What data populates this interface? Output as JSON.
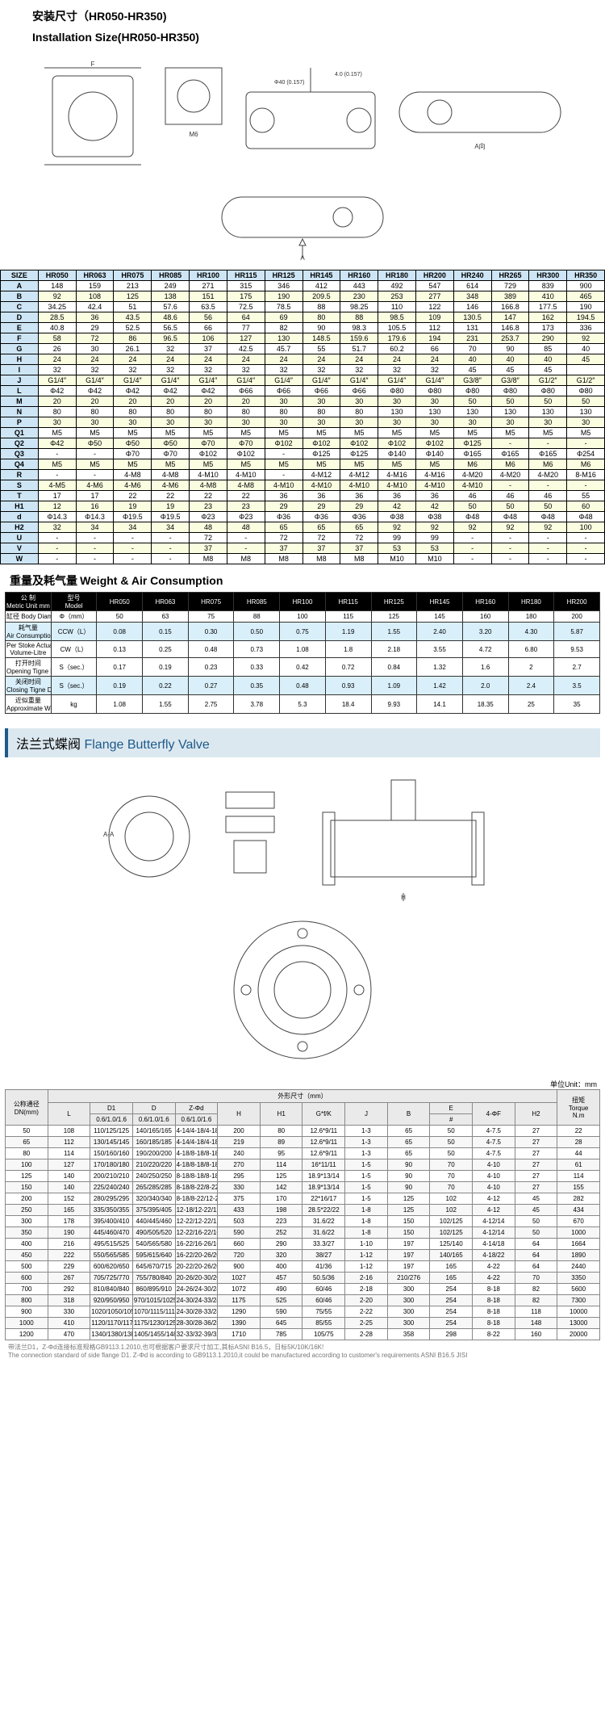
{
  "installTitle": {
    "zh": "安装尺寸（HR050-HR350)",
    "en": "Installation Size(HR050-HR350)"
  },
  "diagramLabels": {
    "m6": "M6",
    "p40": "4.0 (0.157)",
    "phi40": "Φ40 (0.157)",
    "aDir": "A向",
    "arrowA": "A"
  },
  "sizeTable": {
    "headers": [
      "SIZE",
      "HR050",
      "HR063",
      "HR075",
      "HR085",
      "HR100",
      "HR115",
      "HR125",
      "HR145",
      "HR160",
      "HR180",
      "HR200",
      "HR240",
      "HR265",
      "HR300",
      "HR350"
    ],
    "rows": [
      [
        "A",
        "148",
        "159",
        "213",
        "249",
        "271",
        "315",
        "346",
        "412",
        "443",
        "492",
        "547",
        "614",
        "729",
        "839",
        "900"
      ],
      [
        "B",
        "92",
        "108",
        "125",
        "138",
        "151",
        "175",
        "190",
        "209.5",
        "230",
        "253",
        "277",
        "348",
        "389",
        "410",
        "465"
      ],
      [
        "C",
        "34.25",
        "42.4",
        "51",
        "57.6",
        "63.5",
        "72.5",
        "78.5",
        "88",
        "98.25",
        "110",
        "122",
        "146",
        "166.8",
        "177.5",
        "190"
      ],
      [
        "D",
        "28.5",
        "36",
        "43.5",
        "48.6",
        "56",
        "64",
        "69",
        "80",
        "88",
        "98.5",
        "109",
        "130.5",
        "147",
        "162",
        "194.5"
      ],
      [
        "E",
        "40.8",
        "29",
        "52.5",
        "56.5",
        "66",
        "77",
        "82",
        "90",
        "98.3",
        "105.5",
        "112",
        "131",
        "146.8",
        "173",
        "336"
      ],
      [
        "F",
        "58",
        "72",
        "86",
        "96.5",
        "106",
        "127",
        "130",
        "148.5",
        "159.6",
        "179.6",
        "194",
        "231",
        "253.7",
        "290",
        "92"
      ],
      [
        "G",
        "26",
        "30",
        "26.1",
        "32",
        "37",
        "42.5",
        "45.7",
        "55",
        "51.7",
        "60.2",
        "66",
        "70",
        "90",
        "85",
        "40"
      ],
      [
        "H",
        "24",
        "24",
        "24",
        "24",
        "24",
        "24",
        "24",
        "24",
        "24",
        "24",
        "24",
        "40",
        "40",
        "40",
        "45"
      ],
      [
        "I",
        "32",
        "32",
        "32",
        "32",
        "32",
        "32",
        "32",
        "32",
        "32",
        "32",
        "32",
        "45",
        "45",
        "45",
        ""
      ],
      [
        "J",
        "G1/4″",
        "G1/4″",
        "G1/4″",
        "G1/4″",
        "G1/4″",
        "G1/4″",
        "G1/4″",
        "G1/4″",
        "G1/4″",
        "G1/4″",
        "G1/4″",
        "G3/8″",
        "G3/8″",
        "G1/2″",
        "G1/2″"
      ],
      [
        "L",
        "Φ42",
        "Φ42",
        "Φ42",
        "Φ42",
        "Φ42",
        "Φ66",
        "Φ66",
        "Φ66",
        "Φ66",
        "Φ80",
        "Φ80",
        "Φ80",
        "Φ80",
        "Φ80",
        "Φ80"
      ],
      [
        "M",
        "20",
        "20",
        "20",
        "20",
        "20",
        "20",
        "30",
        "30",
        "30",
        "30",
        "30",
        "50",
        "50",
        "50",
        "50"
      ],
      [
        "N",
        "80",
        "80",
        "80",
        "80",
        "80",
        "80",
        "80",
        "80",
        "80",
        "130",
        "130",
        "130",
        "130",
        "130",
        "130"
      ],
      [
        "P",
        "30",
        "30",
        "30",
        "30",
        "30",
        "30",
        "30",
        "30",
        "30",
        "30",
        "30",
        "30",
        "30",
        "30",
        "30"
      ],
      [
        "Q1",
        "M5",
        "M5",
        "M5",
        "M5",
        "M5",
        "M5",
        "M5",
        "M5",
        "M5",
        "M5",
        "M5",
        "M5",
        "M5",
        "M5",
        "M5"
      ],
      [
        "Q2",
        "Φ42",
        "Φ50",
        "Φ50",
        "Φ50",
        "Φ70",
        "Φ70",
        "Φ102",
        "Φ102",
        "Φ102",
        "Φ102",
        "Φ102",
        "Φ125",
        "-",
        "-",
        "-"
      ],
      [
        "Q3",
        "-",
        "-",
        "Φ70",
        "Φ70",
        "Φ102",
        "Φ102",
        "-",
        "Φ125",
        "Φ125",
        "Φ140",
        "Φ140",
        "Φ165",
        "Φ165",
        "Φ165",
        "Φ254"
      ],
      [
        "Q4",
        "M5",
        "M5",
        "M5",
        "M5",
        "M5",
        "M5",
        "M5",
        "M5",
        "M5",
        "M5",
        "M5",
        "M6",
        "M6",
        "M6",
        "M6"
      ],
      [
        "R",
        "-",
        "-",
        "4-M8",
        "4-M8",
        "4-M10",
        "4-M10",
        "-",
        "4-M12",
        "4-M12",
        "4-M16",
        "4-M16",
        "4-M20",
        "4-M20",
        "4-M20",
        "8-M16"
      ],
      [
        "S",
        "4-M5",
        "4-M6",
        "4-M6",
        "4-M6",
        "4-M8",
        "4-M8",
        "4-M10",
        "4-M10",
        "4-M10",
        "4-M10",
        "4-M10",
        "4-M10",
        "-",
        "-",
        "-"
      ],
      [
        "T",
        "17",
        "17",
        "22",
        "22",
        "22",
        "22",
        "36",
        "36",
        "36",
        "36",
        "36",
        "46",
        "46",
        "46",
        "55"
      ],
      [
        "H1",
        "12",
        "16",
        "19",
        "19",
        "23",
        "23",
        "29",
        "29",
        "29",
        "42",
        "42",
        "50",
        "50",
        "50",
        "60"
      ],
      [
        "d",
        "Φ14.3",
        "Φ14.3",
        "Φ19.5",
        "Φ19.5",
        "Φ23",
        "Φ23",
        "Φ36",
        "Φ36",
        "Φ36",
        "Φ38",
        "Φ38",
        "Φ48",
        "Φ48",
        "Φ48",
        "Φ48"
      ],
      [
        "H2",
        "32",
        "34",
        "34",
        "34",
        "48",
        "48",
        "65",
        "65",
        "65",
        "92",
        "92",
        "92",
        "92",
        "92",
        "100"
      ],
      [
        "U",
        "-",
        "-",
        "-",
        "-",
        "72",
        "-",
        "72",
        "72",
        "72",
        "99",
        "99",
        "-",
        "-",
        "-",
        "-"
      ],
      [
        "V",
        "-",
        "-",
        "-",
        "-",
        "37",
        "-",
        "37",
        "37",
        "37",
        "53",
        "53",
        "-",
        "-",
        "-",
        "-"
      ],
      [
        "W",
        "-",
        "-",
        "-",
        "-",
        "M8",
        "M8",
        "M8",
        "M8",
        "M8",
        "M10",
        "M10",
        "-",
        "-",
        "-",
        "-"
      ]
    ]
  },
  "weightTitle": {
    "zh": "重量及耗气量",
    "en": "Weight & Air Consumption"
  },
  "weightTable": {
    "topLabels": {
      "metric": "公 制",
      "metricEn": "Metric Unit  mm",
      "model": "型号",
      "modelEn": "Model"
    },
    "models": [
      "HR050",
      "HR063",
      "HR075",
      "HR085",
      "HR100",
      "HR115",
      "HR125",
      "HR145",
      "HR160",
      "HR180",
      "HR200"
    ],
    "rows": [
      {
        "zh": "缸径 Body Diameter",
        "unit": "Φ（mm）",
        "vals": [
          "50",
          "63",
          "75",
          "88",
          "100",
          "115",
          "125",
          "145",
          "160",
          "180",
          "200"
        ],
        "style": "lbl"
      },
      {
        "zh": "耗气量",
        "en": "Air Consumption",
        "unit": "CCW（L）",
        "vals": [
          "0.08",
          "0.15",
          "0.30",
          "0.50",
          "0.75",
          "1.19",
          "1.55",
          "2.40",
          "3.20",
          "4.30",
          "5.87"
        ],
        "style": "rowlbl2"
      },
      {
        "zh": "Per Stoke Actual",
        "en": "Volume-Litre",
        "unit": "CW（L）",
        "vals": [
          "0.13",
          "0.25",
          "0.48",
          "0.73",
          "1.08",
          "1.8",
          "2.18",
          "3.55",
          "4.72",
          "6.80",
          "9.53"
        ],
        "style": "lbl"
      },
      {
        "zh": "打开时间",
        "en": "Opening Tigne DA",
        "unit": "S（sec.）",
        "vals": [
          "0.17",
          "0.19",
          "0.23",
          "0.33",
          "0.42",
          "0.72",
          "0.84",
          "1.32",
          "1.6",
          "2",
          "2.7"
        ],
        "style": "lbl"
      },
      {
        "zh": "关闭时间",
        "en": "Closing Tigne DA",
        "unit": "S（sec.）",
        "vals": [
          "0.19",
          "0.22",
          "0.27",
          "0.35",
          "0.48",
          "0.93",
          "1.09",
          "1.42",
          "2.0",
          "2.4",
          "3.5"
        ],
        "style": "rowlbl2"
      },
      {
        "zh": "近似重量",
        "en": "Approximate Weight-DA",
        "unit": "kg",
        "vals": [
          "1.08",
          "1.55",
          "2.75",
          "3.78",
          "5.3",
          "18.4",
          "9.93",
          "14.1",
          "18.35",
          "25",
          "35"
        ],
        "style": "lbl"
      }
    ]
  },
  "flangeTitle": {
    "zh": "法兰式蝶阀",
    "en": "Flange Butterfly Valve"
  },
  "unitNote": "单位Unit：mm",
  "flangeTable": {
    "top": {
      "dn": "公称通径",
      "dnEn": "DN(mm)",
      "outDim": "外形尺寸（mm）",
      "torque": "扭矩",
      "torqueEn": "Torque"
    },
    "headers": [
      "L",
      "D1",
      "D",
      "Z-Φd",
      "H",
      "H1",
      "G*f/K",
      "J",
      "B",
      "E",
      "4-ΦF",
      "H2",
      "N.m"
    ],
    "sub": {
      "d1": "0.6/1.0/1.6",
      "d": "0.6/1.0/1.6",
      "zd": "0.6/1.0/1.6",
      "e": "#"
    },
    "rows": [
      [
        "50",
        "108",
        "110/125/125",
        "140/165/165",
        "4-14/4-18/4-18",
        "200",
        "80",
        "12.6*9/11",
        "1-3",
        "65",
        "50",
        "4-7.5",
        "27",
        "22"
      ],
      [
        "65",
        "112",
        "130/145/145",
        "160/185/185",
        "4-14/4-18/4-18",
        "219",
        "89",
        "12.6*9/11",
        "1-3",
        "65",
        "50",
        "4-7.5",
        "27",
        "28"
      ],
      [
        "80",
        "114",
        "150/160/160",
        "190/200/200",
        "4-18/8-18/8-18",
        "240",
        "95",
        "12.6*9/11",
        "1-3",
        "65",
        "50",
        "4-7.5",
        "27",
        "44"
      ],
      [
        "100",
        "127",
        "170/180/180",
        "210/220/220",
        "4-18/8-18/8-18",
        "270",
        "114",
        "16*11/11",
        "1-5",
        "90",
        "70",
        "4-10",
        "27",
        "61"
      ],
      [
        "125",
        "140",
        "200/210/210",
        "240/250/250",
        "8-18/8-18/8-18",
        "295",
        "125",
        "18.9*13/14",
        "1-5",
        "90",
        "70",
        "4-10",
        "27",
        "114"
      ],
      [
        "150",
        "140",
        "225/240/240",
        "265/285/285",
        "8-18/8-22/8-22",
        "330",
        "142",
        "18.9*13/14",
        "1-5",
        "90",
        "70",
        "4-10",
        "27",
        "155"
      ],
      [
        "200",
        "152",
        "280/295/295",
        "320/340/340",
        "8-18/8-22/12-22",
        "375",
        "170",
        "22*16/17",
        "1-5",
        "125",
        "102",
        "4-12",
        "45",
        "282"
      ],
      [
        "250",
        "165",
        "335/350/355",
        "375/395/405",
        "12-18/12-22/12-26",
        "433",
        "198",
        "28.5*22/22",
        "1-8",
        "125",
        "102",
        "4-12",
        "45",
        "434"
      ],
      [
        "300",
        "178",
        "395/400/410",
        "440/445/460",
        "12-22/12-22/12-26",
        "503",
        "223",
        "31.6/22",
        "1-8",
        "150",
        "102/125",
        "4-12/14",
        "50",
        "670"
      ],
      [
        "350",
        "190",
        "445/460/470",
        "490/505/520",
        "12-22/16-22/16-26",
        "590",
        "252",
        "31.6/22",
        "1-8",
        "150",
        "102/125",
        "4-12/14",
        "50",
        "1000"
      ],
      [
        "400",
        "216",
        "495/515/525",
        "540/565/580",
        "16-22/16-26/16-30",
        "660",
        "290",
        "33.3/27",
        "1-10",
        "197",
        "125/140",
        "4-14/18",
        "64",
        "1664"
      ],
      [
        "450",
        "222",
        "550/565/585",
        "595/615/640",
        "16-22/20-26/20-30",
        "720",
        "320",
        "38/27",
        "1-12",
        "197",
        "140/165",
        "4-18/22",
        "64",
        "1890"
      ],
      [
        "500",
        "229",
        "600/620/650",
        "645/670/715",
        "20-22/20-26/20-33",
        "900",
        "400",
        "41/36",
        "1-12",
        "197",
        "165",
        "4-22",
        "64",
        "2440"
      ],
      [
        "600",
        "267",
        "705/725/770",
        "755/780/840",
        "20-26/20-30/20-36",
        "1027",
        "457",
        "50.5/36",
        "2-16",
        "210/276",
        "165",
        "4-22",
        "70",
        "3350"
      ],
      [
        "700",
        "292",
        "810/840/840",
        "860/895/910",
        "24-26/24-30/24-36",
        "1072",
        "490",
        "60/46",
        "2-18",
        "300",
        "254",
        "8-18",
        "82",
        "5600"
      ],
      [
        "800",
        "318",
        "920/950/950",
        "970/1015/1025",
        "24-30/24-33/24-39",
        "1175",
        "525",
        "60/46",
        "2-20",
        "300",
        "254",
        "8-18",
        "82",
        "7300"
      ],
      [
        "900",
        "330",
        "1020/1050/1050",
        "1070/1115/1115",
        "24-30/28-33/28-39",
        "1290",
        "590",
        "75/55",
        "2-22",
        "300",
        "254",
        "8-18",
        "118",
        "10000"
      ],
      [
        "1000",
        "410",
        "1120/1170/1170",
        "1175/1230/1255",
        "28-30/28-36/28-42",
        "1390",
        "645",
        "85/55",
        "2-25",
        "300",
        "254",
        "8-18",
        "148",
        "13000"
      ],
      [
        "1200",
        "470",
        "1340/1380/1380",
        "1405/1455/1485",
        "32-33/32-39/32-48",
        "1710",
        "785",
        "105/75",
        "2-28",
        "358",
        "298",
        "8-22",
        "160",
        "20000"
      ]
    ]
  },
  "footnote": {
    "zh": "带法兰D1，Z-Φd连接标准规格GB9113.1.2010,也可根据客户要求尺寸加工,其标ASNI B16.5，日标5K/10K/16K!",
    "en": "The connection standard of side flange D1. Z-Φd is according to GB9113.1.2010,it could be manufactured according to customer's requirements ASNI B16.5  JISI"
  }
}
